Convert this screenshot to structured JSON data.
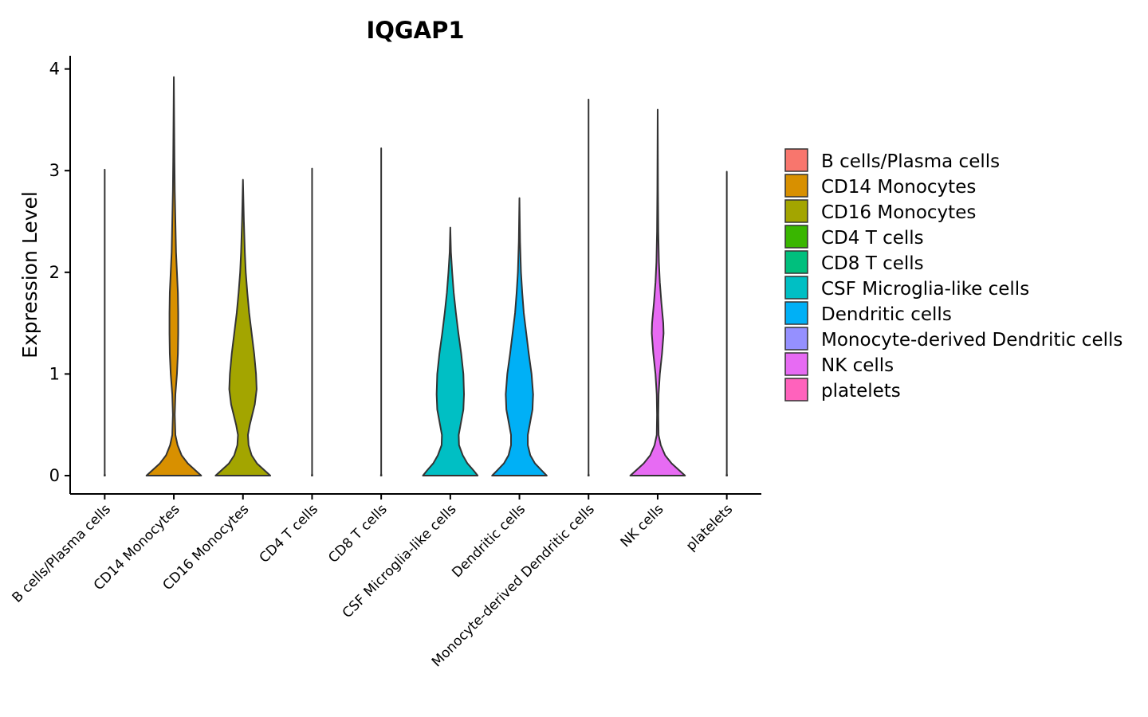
{
  "chart_data": {
    "type": "violin",
    "title": "IQGAP1",
    "xlabel": "",
    "ylabel": "Expression Level",
    "ylim": [
      -0.18,
      4.13
    ],
    "yticks": [
      0,
      1,
      2,
      3,
      4
    ],
    "legend_position": "right",
    "categories": [
      {
        "name": "B cells/Plasma cells",
        "color": "#F8766D",
        "max": 3.01,
        "profile": [
          [
            0,
            0.01
          ],
          [
            0.02,
            0.0
          ],
          [
            3.01,
            0.0
          ]
        ]
      },
      {
        "name": "CD14 Monocytes",
        "color": "#D89000",
        "max": 3.92,
        "profile": [
          [
            0,
            0.88
          ],
          [
            0.05,
            0.7
          ],
          [
            0.12,
            0.45
          ],
          [
            0.2,
            0.25
          ],
          [
            0.3,
            0.12
          ],
          [
            0.4,
            0.05
          ],
          [
            0.6,
            0.03
          ],
          [
            0.8,
            0.05
          ],
          [
            1.0,
            0.1
          ],
          [
            1.2,
            0.13
          ],
          [
            1.4,
            0.14
          ],
          [
            1.6,
            0.14
          ],
          [
            1.8,
            0.13
          ],
          [
            2.0,
            0.1
          ],
          [
            2.2,
            0.07
          ],
          [
            2.5,
            0.05
          ],
          [
            2.8,
            0.03
          ],
          [
            3.1,
            0.02
          ],
          [
            3.5,
            0.01
          ],
          [
            3.92,
            0.0
          ]
        ]
      },
      {
        "name": "CD16 Monocytes",
        "color": "#A3A500",
        "max": 2.91,
        "profile": [
          [
            0,
            0.88
          ],
          [
            0.05,
            0.7
          ],
          [
            0.12,
            0.45
          ],
          [
            0.2,
            0.28
          ],
          [
            0.3,
            0.18
          ],
          [
            0.4,
            0.16
          ],
          [
            0.5,
            0.22
          ],
          [
            0.7,
            0.38
          ],
          [
            0.85,
            0.44
          ],
          [
            1.0,
            0.42
          ],
          [
            1.2,
            0.36
          ],
          [
            1.4,
            0.28
          ],
          [
            1.6,
            0.2
          ],
          [
            1.8,
            0.14
          ],
          [
            2.0,
            0.09
          ],
          [
            2.2,
            0.06
          ],
          [
            2.5,
            0.03
          ],
          [
            2.91,
            0.0
          ]
        ]
      },
      {
        "name": "CD4 T cells",
        "color": "#39B600",
        "max": 3.02,
        "profile": [
          [
            0,
            0.01
          ],
          [
            0.02,
            0.0
          ],
          [
            3.02,
            0.0
          ]
        ]
      },
      {
        "name": "CD8 T cells",
        "color": "#00BF7D",
        "max": 3.22,
        "profile": [
          [
            0,
            0.01
          ],
          [
            0.02,
            0.0
          ],
          [
            3.22,
            0.0
          ]
        ]
      },
      {
        "name": "CSF Microglia-like cells",
        "color": "#00BFC4",
        "max": 2.44,
        "profile": [
          [
            0,
            0.88
          ],
          [
            0.05,
            0.75
          ],
          [
            0.12,
            0.55
          ],
          [
            0.2,
            0.4
          ],
          [
            0.3,
            0.28
          ],
          [
            0.4,
            0.27
          ],
          [
            0.5,
            0.33
          ],
          [
            0.65,
            0.42
          ],
          [
            0.8,
            0.44
          ],
          [
            1.0,
            0.42
          ],
          [
            1.2,
            0.35
          ],
          [
            1.4,
            0.26
          ],
          [
            1.6,
            0.18
          ],
          [
            1.8,
            0.11
          ],
          [
            2.0,
            0.06
          ],
          [
            2.2,
            0.02
          ],
          [
            2.44,
            0.0
          ]
        ]
      },
      {
        "name": "Dendritic cells",
        "color": "#00B0F6",
        "max": 2.73,
        "profile": [
          [
            0,
            0.88
          ],
          [
            0.05,
            0.72
          ],
          [
            0.12,
            0.5
          ],
          [
            0.2,
            0.35
          ],
          [
            0.3,
            0.27
          ],
          [
            0.4,
            0.27
          ],
          [
            0.5,
            0.33
          ],
          [
            0.65,
            0.42
          ],
          [
            0.8,
            0.44
          ],
          [
            1.0,
            0.39
          ],
          [
            1.2,
            0.3
          ],
          [
            1.4,
            0.22
          ],
          [
            1.6,
            0.14
          ],
          [
            1.8,
            0.09
          ],
          [
            2.0,
            0.05
          ],
          [
            2.3,
            0.02
          ],
          [
            2.73,
            0.0
          ]
        ]
      },
      {
        "name": "Monocyte-derived Dendritic cells",
        "color": "#9590FF",
        "max": 3.7,
        "profile": [
          [
            0,
            0.01
          ],
          [
            0.02,
            0.0
          ],
          [
            3.7,
            0.0
          ]
        ]
      },
      {
        "name": "NK cells",
        "color": "#E76BF3",
        "max": 3.6,
        "profile": [
          [
            0,
            0.88
          ],
          [
            0.05,
            0.7
          ],
          [
            0.12,
            0.45
          ],
          [
            0.2,
            0.24
          ],
          [
            0.3,
            0.1
          ],
          [
            0.4,
            0.03
          ],
          [
            0.6,
            0.02
          ],
          [
            0.8,
            0.03
          ],
          [
            1.0,
            0.07
          ],
          [
            1.2,
            0.14
          ],
          [
            1.4,
            0.19
          ],
          [
            1.5,
            0.18
          ],
          [
            1.7,
            0.12
          ],
          [
            1.9,
            0.07
          ],
          [
            2.1,
            0.04
          ],
          [
            2.4,
            0.02
          ],
          [
            2.8,
            0.01
          ],
          [
            3.6,
            0.0
          ]
        ]
      },
      {
        "name": "platelets",
        "color": "#FF62BC",
        "max": 2.99,
        "profile": [
          [
            0,
            0.01
          ],
          [
            0.02,
            0.0
          ],
          [
            2.99,
            0.0
          ]
        ]
      }
    ]
  }
}
